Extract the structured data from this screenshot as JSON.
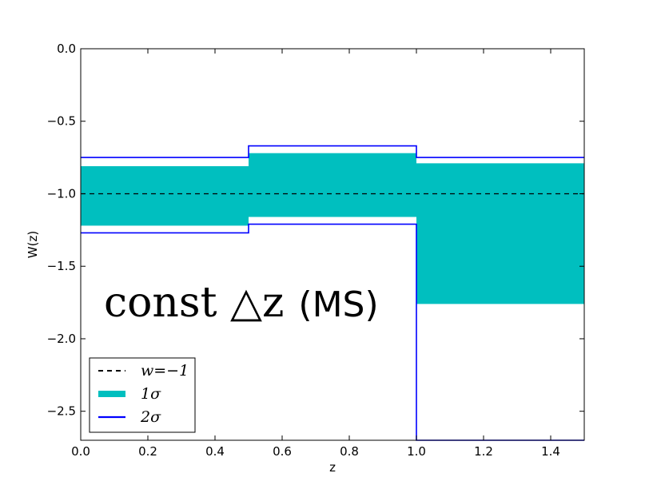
{
  "chart_data": {
    "type": "step-band",
    "xlabel": "z",
    "ylabel": "W(z)",
    "xlim": [
      0.0,
      1.5
    ],
    "ylim": [
      -2.7,
      0.0
    ],
    "xticks": [
      "0.0",
      "0.2",
      "0.4",
      "0.6",
      "0.8",
      "1.0",
      "1.2",
      "1.4"
    ],
    "yticks": [
      "0.0",
      "−0.5",
      "−1.0",
      "−1.5",
      "−2.0",
      "−2.5"
    ],
    "xtick_values": [
      0.0,
      0.2,
      0.4,
      0.6,
      0.8,
      1.0,
      1.2,
      1.4
    ],
    "ytick_values": [
      0.0,
      -0.5,
      -1.0,
      -1.5,
      -2.0,
      -2.5
    ],
    "bins": [
      {
        "z_min": 0.0,
        "z_max": 0.5,
        "sigma1": [
          -1.22,
          -0.81
        ],
        "sigma2": [
          -1.27,
          -0.75
        ]
      },
      {
        "z_min": 0.5,
        "z_max": 1.0,
        "sigma1": [
          -1.16,
          -0.72
        ],
        "sigma2": [
          -1.21,
          -0.67
        ]
      },
      {
        "z_min": 1.0,
        "z_max": 1.5,
        "sigma1": [
          -1.76,
          -0.79
        ],
        "sigma2": [
          -2.7,
          -0.75
        ]
      }
    ],
    "reference_line": {
      "y": -1.0,
      "style": "dashed",
      "color": "#000000"
    },
    "annotation": {
      "math": "const △z",
      "text": "(MS)"
    },
    "legend": {
      "placement": "lower-left",
      "entries": [
        {
          "label": "w=−1",
          "style": "dashed",
          "color": "#000000"
        },
        {
          "label": "1σ",
          "style": "band",
          "color": "#00bfbf"
        },
        {
          "label": "2σ",
          "style": "line",
          "color": "#0000ff"
        }
      ]
    }
  }
}
